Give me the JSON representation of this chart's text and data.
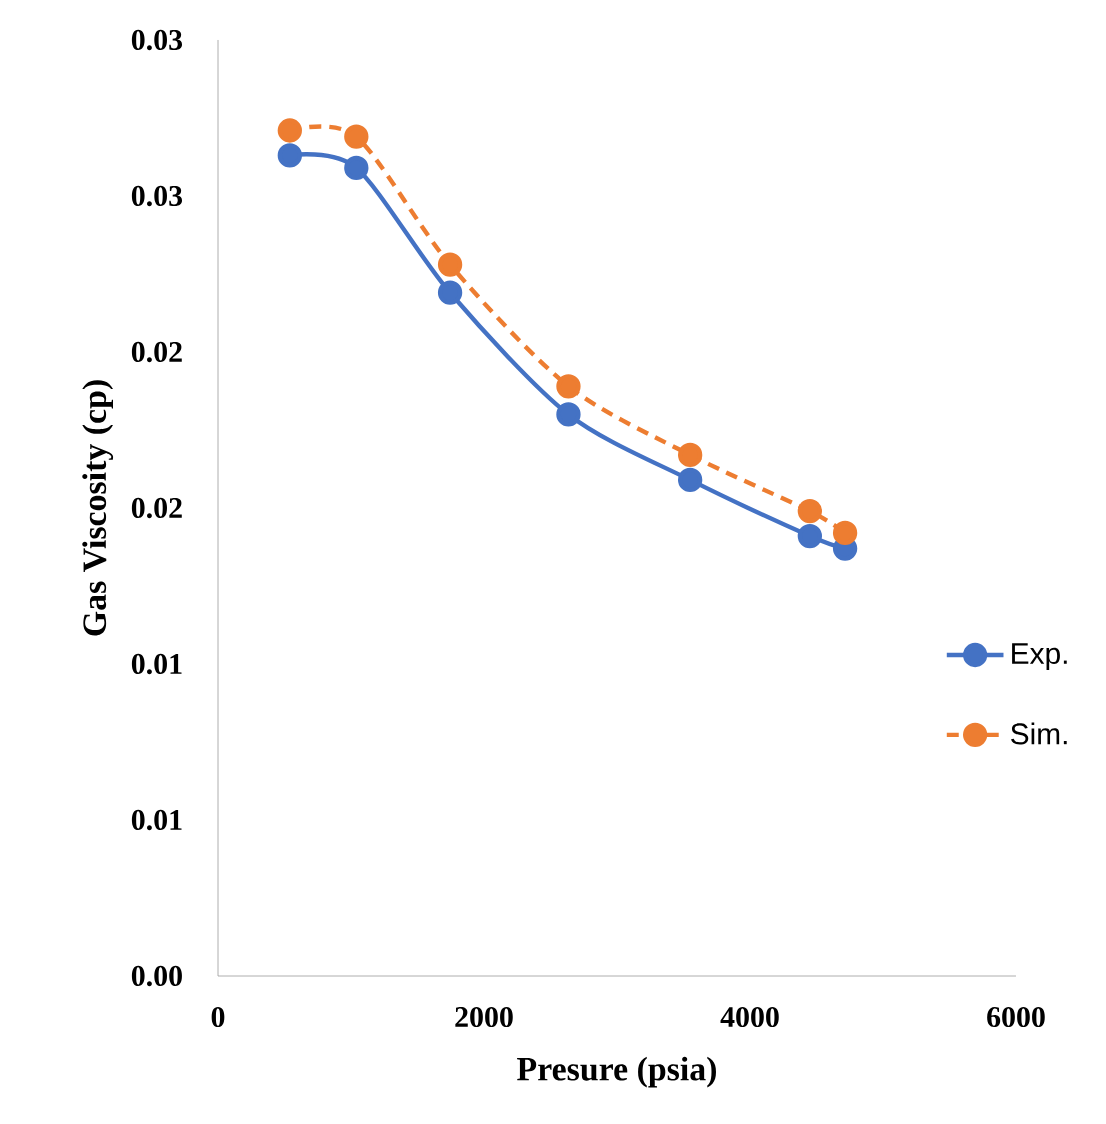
{
  "chart_data": {
    "type": "line",
    "xlabel": "Presure (psia)",
    "ylabel": "Gas Viscosity (cp)",
    "xlim": [
      0,
      6000
    ],
    "xticks": [
      0,
      2000,
      4000,
      6000
    ],
    "ylim": [
      0,
      0.03
    ],
    "yticks": [
      {
        "value": 0,
        "label": "0.00"
      },
      {
        "value": 0.005,
        "label": "0.01"
      },
      {
        "value": 0.01,
        "label": "0.01"
      },
      {
        "value": 0.015,
        "label": "0.02"
      },
      {
        "value": 0.02,
        "label": "0.02"
      },
      {
        "value": 0.025,
        "label": "0.03"
      },
      {
        "value": 0.03,
        "label": "0.03"
      }
    ],
    "x": [
      540,
      1040,
      1745,
      2635,
      3550,
      4450,
      4715
    ],
    "series": [
      {
        "name": "Exp.",
        "color": "#4472c4",
        "line_style": "solid",
        "values": [
          0.0263,
          0.0259,
          0.0219,
          0.018,
          0.0159,
          0.0141,
          0.0137
        ]
      },
      {
        "name": "Sim.",
        "color": "#ed7d31",
        "line_style": "dashed",
        "values": [
          0.0271,
          0.0269,
          0.0228,
          0.0189,
          0.0167,
          0.0149,
          0.0142
        ]
      }
    ],
    "marker": "circle",
    "legend": "right"
  }
}
